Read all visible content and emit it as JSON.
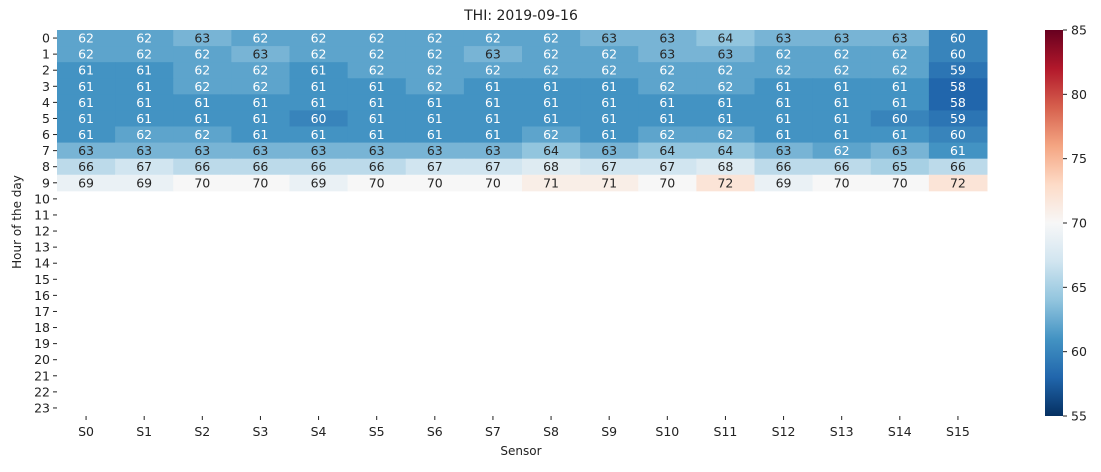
{
  "chart_data": {
    "type": "heatmap",
    "title": "THI: 2019-09-16",
    "xlabel": "Sensor",
    "ylabel": "Hour of the day",
    "x": [
      "S0",
      "S1",
      "S2",
      "S3",
      "S4",
      "S5",
      "S6",
      "S7",
      "S8",
      "S9",
      "S10",
      "S11",
      "S12",
      "S13",
      "S14",
      "S15"
    ],
    "y": [
      "0",
      "1",
      "2",
      "3",
      "4",
      "5",
      "6",
      "7",
      "8",
      "9",
      "10",
      "11",
      "12",
      "13",
      "14",
      "15",
      "16",
      "17",
      "18",
      "19",
      "20",
      "21",
      "22",
      "23"
    ],
    "values": [
      [
        62,
        62,
        63,
        62,
        62,
        62,
        62,
        62,
        62,
        63,
        63,
        64,
        63,
        63,
        63,
        60
      ],
      [
        62,
        62,
        62,
        63,
        62,
        62,
        62,
        63,
        62,
        62,
        63,
        63,
        62,
        62,
        62,
        60
      ],
      [
        61,
        61,
        62,
        62,
        61,
        62,
        62,
        62,
        62,
        62,
        62,
        62,
        62,
        62,
        62,
        59
      ],
      [
        61,
        61,
        62,
        62,
        61,
        61,
        62,
        61,
        61,
        61,
        62,
        62,
        61,
        61,
        61,
        58
      ],
      [
        61,
        61,
        61,
        61,
        61,
        61,
        61,
        61,
        61,
        61,
        61,
        61,
        61,
        61,
        61,
        58
      ],
      [
        61,
        61,
        61,
        61,
        60,
        61,
        61,
        61,
        61,
        61,
        61,
        61,
        61,
        61,
        60,
        59
      ],
      [
        61,
        62,
        62,
        61,
        61,
        61,
        61,
        61,
        62,
        61,
        62,
        62,
        61,
        61,
        61,
        60
      ],
      [
        63,
        63,
        63,
        63,
        63,
        63,
        63,
        63,
        64,
        63,
        64,
        64,
        63,
        62,
        63,
        61
      ],
      [
        66,
        67,
        66,
        66,
        66,
        66,
        67,
        67,
        68,
        67,
        67,
        68,
        66,
        66,
        65,
        66
      ],
      [
        69,
        69,
        70,
        70,
        69,
        70,
        70,
        70,
        71,
        71,
        70,
        72,
        69,
        70,
        70,
        72
      ],
      [
        null,
        null,
        null,
        null,
        null,
        null,
        null,
        null,
        null,
        null,
        null,
        null,
        null,
        null,
        null,
        null
      ],
      [
        null,
        null,
        null,
        null,
        null,
        null,
        null,
        null,
        null,
        null,
        null,
        null,
        null,
        null,
        null,
        null
      ],
      [
        null,
        null,
        null,
        null,
        null,
        null,
        null,
        null,
        null,
        null,
        null,
        null,
        null,
        null,
        null,
        null
      ],
      [
        null,
        null,
        null,
        null,
        null,
        null,
        null,
        null,
        null,
        null,
        null,
        null,
        null,
        null,
        null,
        null
      ],
      [
        null,
        null,
        null,
        null,
        null,
        null,
        null,
        null,
        null,
        null,
        null,
        null,
        null,
        null,
        null,
        null
      ],
      [
        null,
        null,
        null,
        null,
        null,
        null,
        null,
        null,
        null,
        null,
        null,
        null,
        null,
        null,
        null,
        null
      ],
      [
        null,
        null,
        null,
        null,
        null,
        null,
        null,
        null,
        null,
        null,
        null,
        null,
        null,
        null,
        null,
        null
      ],
      [
        null,
        null,
        null,
        null,
        null,
        null,
        null,
        null,
        null,
        null,
        null,
        null,
        null,
        null,
        null,
        null
      ],
      [
        null,
        null,
        null,
        null,
        null,
        null,
        null,
        null,
        null,
        null,
        null,
        null,
        null,
        null,
        null,
        null
      ],
      [
        null,
        null,
        null,
        null,
        null,
        null,
        null,
        null,
        null,
        null,
        null,
        null,
        null,
        null,
        null,
        null
      ],
      [
        null,
        null,
        null,
        null,
        null,
        null,
        null,
        null,
        null,
        null,
        null,
        null,
        null,
        null,
        null,
        null
      ],
      [
        null,
        null,
        null,
        null,
        null,
        null,
        null,
        null,
        null,
        null,
        null,
        null,
        null,
        null,
        null,
        null
      ],
      [
        null,
        null,
        null,
        null,
        null,
        null,
        null,
        null,
        null,
        null,
        null,
        null,
        null,
        null,
        null,
        null
      ],
      [
        null,
        null,
        null,
        null,
        null,
        null,
        null,
        null,
        null,
        null,
        null,
        null,
        null,
        null,
        null,
        null
      ]
    ],
    "colorbar": {
      "colormap": "RdBu_r",
      "min": 55,
      "max": 85,
      "ticks": [
        55,
        60,
        65,
        70,
        75,
        80,
        85
      ]
    },
    "grid": false
  }
}
